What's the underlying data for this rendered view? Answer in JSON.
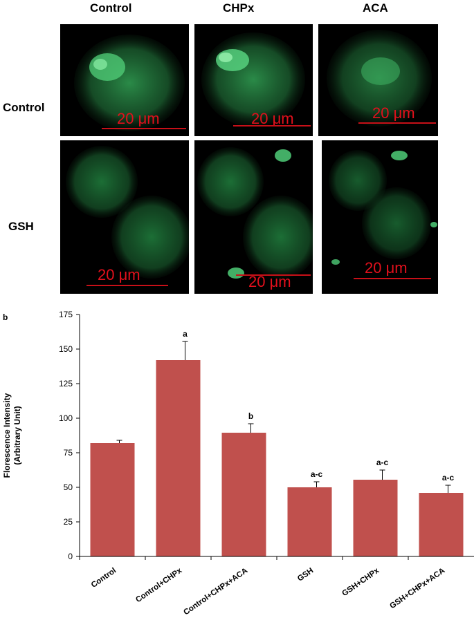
{
  "panel_a": {
    "columns": [
      "Control",
      "CHPx",
      "ACA"
    ],
    "rows": [
      "Control",
      "GSH"
    ],
    "scale_bar": "20 μm"
  },
  "panel_b_label": "b",
  "colors": {
    "bar": "#c0504d",
    "scale": "#e3101c",
    "cell": "#2e8b4a"
  },
  "chart_data": {
    "type": "bar",
    "categories": [
      "Control",
      "Control+CHPx",
      "Control+CHPx+ACA",
      "GSH",
      "GSH+CHPx",
      "GSH+CHPx+ACA"
    ],
    "values": [
      82,
      142,
      89.5,
      50,
      55.5,
      46
    ],
    "errors": [
      2,
      13.5,
      6.5,
      4,
      7,
      5.5
    ],
    "annotations": [
      "",
      "a",
      "b",
      "a-c",
      "a-c",
      "a-c"
    ],
    "title": "",
    "xlabel": "",
    "ylabel": "Florescence Intensity (Arbitrary Unit)",
    "ylabel_lines": [
      "Florescence Intensity",
      "(Arbitrary Unit)"
    ],
    "ylim": [
      0,
      175
    ],
    "yticks": [
      0,
      25,
      50,
      75,
      100,
      125,
      150,
      175
    ],
    "grid": false,
    "legend": "none"
  }
}
